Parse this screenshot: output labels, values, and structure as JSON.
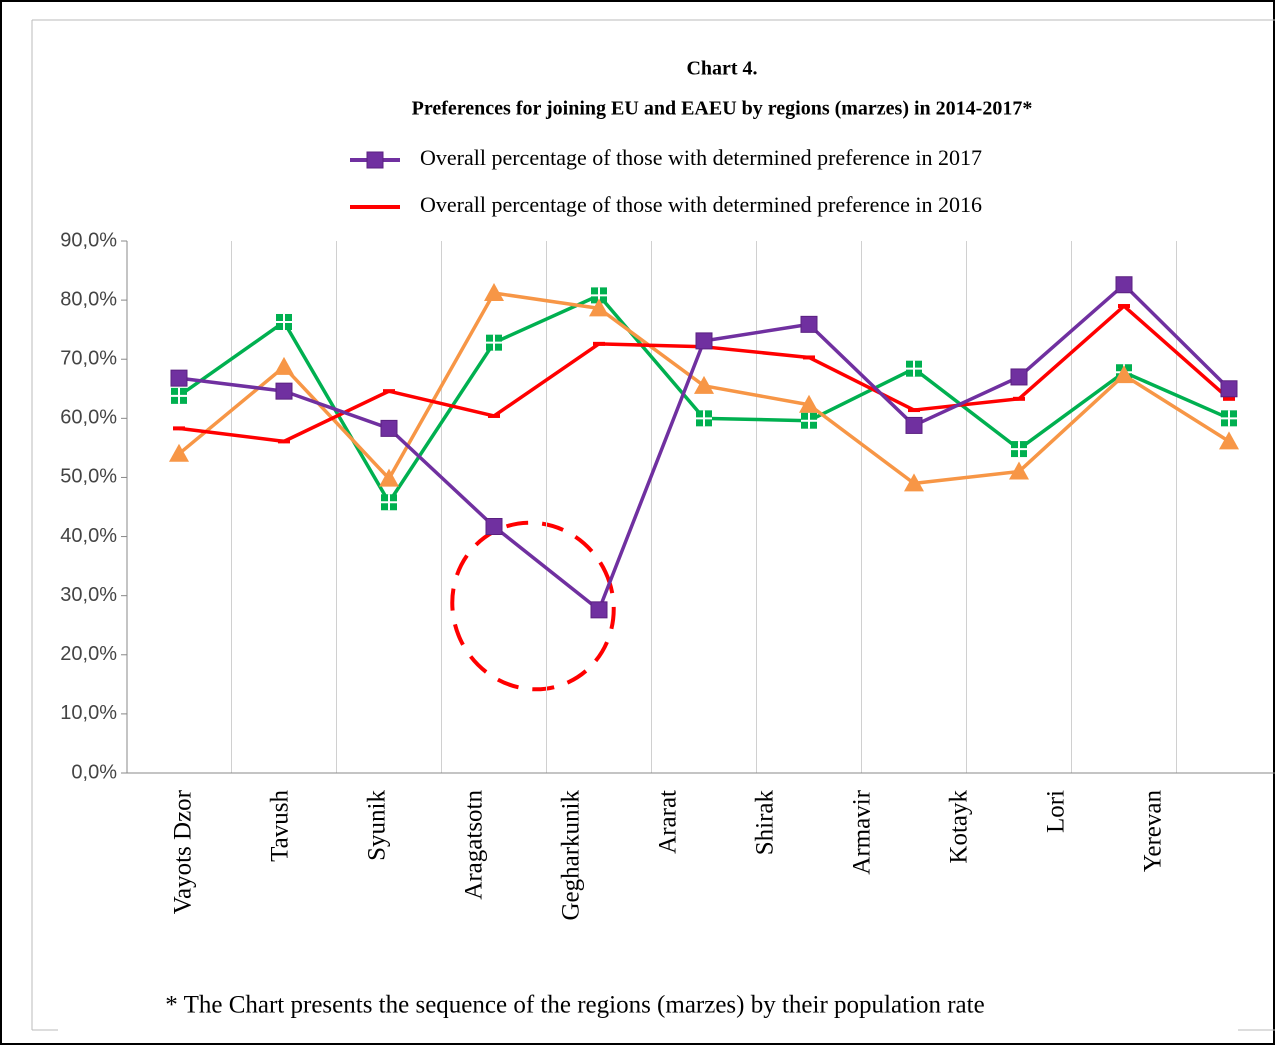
{
  "chart_data": {
    "type": "line",
    "title": "Chart 4.",
    "subtitle": "Preferences for joining EU and EAEU by regions (marzes) in 2014-2017*",
    "footnote": "* The Chart presents the sequence of the regions (marzes) by their population rate",
    "categories": [
      "Vayots Dzor",
      "Tavush",
      "Syunik",
      "Aragatsotn",
      "Gegharkunik",
      "Ararat",
      "Shirak",
      "Armavir",
      "Kotayk",
      "Lori",
      "Yerevan"
    ],
    "series": [
      {
        "name": "Overall percentage of those with determined preference in 2017",
        "color": "#7030a0",
        "marker": "square",
        "values": [
          66.8,
          64.6,
          58.3,
          41.7,
          27.6,
          73.1,
          75.9,
          58.8,
          67.0,
          82.6,
          65.0
        ]
      },
      {
        "name": "Overall percentage of those with determined preference in 2016",
        "color": "#ff0000",
        "marker": "dash",
        "values": [
          58.3,
          56.1,
          64.6,
          60.4,
          72.6,
          72.1,
          70.3,
          61.4,
          63.3,
          79.0,
          63.3
        ]
      },
      {
        "color": "#00b050",
        "marker": "square-cross",
        "values": [
          63.8,
          76.3,
          45.8,
          72.8,
          80.8,
          60.0,
          59.6,
          68.4,
          54.8,
          67.8,
          60.0
        ]
      },
      {
        "color": "#f79646",
        "marker": "triangle",
        "values": [
          54.0,
          68.7,
          49.8,
          81.2,
          78.6,
          65.5,
          62.3,
          49.0,
          51.0,
          67.3,
          56.1
        ]
      }
    ],
    "ylim": [
      0,
      90
    ],
    "yticks": [
      {
        "value": 0,
        "label": "0,0%"
      },
      {
        "value": 10,
        "label": "10,0%"
      },
      {
        "value": 20,
        "label": "20,0%"
      },
      {
        "value": 30,
        "label": "30,0%"
      },
      {
        "value": 40,
        "label": "40,0%"
      },
      {
        "value": 50,
        "label": "50,0%"
      },
      {
        "value": 60,
        "label": "60,0%"
      },
      {
        "value": 70,
        "label": "70,0%"
      },
      {
        "value": 80,
        "label": "80,0%"
      },
      {
        "value": 90,
        "label": "90,0%"
      }
    ],
    "grid": false,
    "legend": "top"
  }
}
